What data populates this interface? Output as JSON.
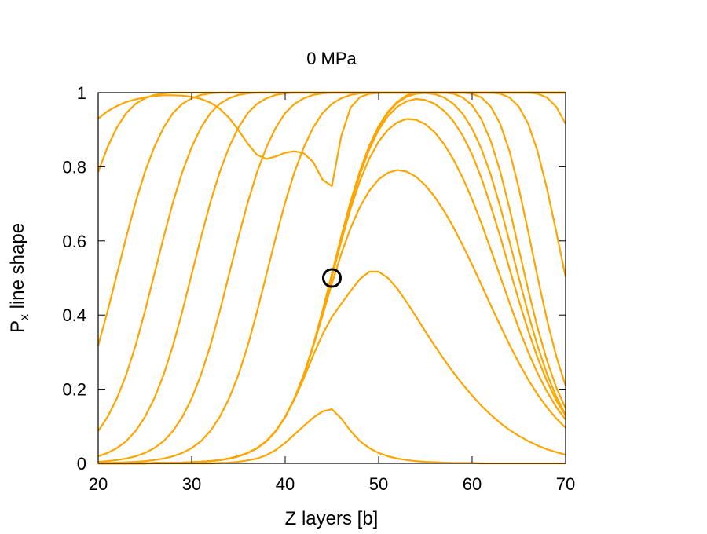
{
  "chart_data": {
    "type": "line",
    "title": "0 MPa",
    "xlabel": "Z layers [b]",
    "ylabel_main": "P",
    "ylabel_sub": "x",
    "ylabel_rest": " line shape",
    "xlim": [
      20,
      70
    ],
    "ylim": [
      0,
      1
    ],
    "xticks": [
      20,
      30,
      40,
      50,
      60,
      70
    ],
    "xtick_labels": [
      "20",
      "30",
      "40",
      "50",
      "60",
      "70"
    ],
    "yticks": [
      0,
      0.2,
      0.4,
      0.6,
      0.8,
      1
    ],
    "ytick_labels": [
      "0",
      "0.2",
      "0.4",
      "0.6",
      "0.8",
      "1"
    ],
    "grid": false,
    "legend": "none",
    "line_color": "#ffa500",
    "marker": {
      "x": 45,
      "y": 0.5,
      "shape": "open-circle",
      "color": "#000000"
    },
    "x": [
      20,
      21,
      22,
      23,
      24,
      25,
      26,
      27,
      28,
      29,
      30,
      31,
      32,
      33,
      34,
      35,
      36,
      37,
      38,
      39,
      40,
      41,
      42,
      43,
      44,
      45,
      46,
      47,
      48,
      49,
      50,
      51,
      52,
      53,
      54,
      55,
      56,
      57,
      58,
      59,
      60,
      61,
      62,
      63,
      64,
      65,
      66,
      67,
      68,
      69,
      70
    ],
    "series": [
      {
        "values": [
          0.93,
          0.95,
          0.964,
          0.975,
          0.982,
          0.987,
          0.991,
          0.993,
          0.993,
          0.992,
          0.989,
          0.983,
          0.973,
          0.957,
          0.932,
          0.899,
          0.862,
          0.832,
          0.821,
          0.828,
          0.838,
          0.842,
          0.836,
          0.813,
          0.765,
          0.748,
          0.883,
          0.96,
          0.988,
          0.997,
          0.999,
          1.0,
          1.0,
          1.0,
          1.0,
          1.0,
          1.0,
          1.0,
          1.0,
          1.0,
          1.0,
          1.0,
          1.0,
          1.0,
          1.0,
          1.0,
          1.0,
          1.0,
          1.0,
          1.0,
          1.0
        ]
      },
      {
        "values": [
          0.0,
          0.0,
          0.0,
          0.0,
          0.0,
          0.0,
          0.0,
          0.0,
          0.0,
          0.0,
          0.0,
          0.0,
          0.0,
          0.001,
          0.002,
          0.004,
          0.008,
          0.013,
          0.022,
          0.036,
          0.055,
          0.078,
          0.101,
          0.123,
          0.14,
          0.146,
          0.121,
          0.087,
          0.06,
          0.041,
          0.028,
          0.019,
          0.013,
          0.009,
          0.006,
          0.004,
          0.003,
          0.002,
          0.001,
          0.001,
          0.001,
          0.0,
          0.0,
          0.0,
          0.0,
          0.0,
          0.0,
          0.0,
          0.0,
          0.0,
          0.0
        ]
      },
      {
        "values": [
          0.0,
          0.0,
          0.0,
          0.0,
          0.0,
          0.0,
          0.001,
          0.001,
          0.001,
          0.002,
          0.003,
          0.004,
          0.006,
          0.009,
          0.013,
          0.019,
          0.028,
          0.041,
          0.06,
          0.087,
          0.125,
          0.173,
          0.23,
          0.291,
          0.348,
          0.395,
          0.43,
          0.465,
          0.497,
          0.517,
          0.517,
          0.5,
          0.471,
          0.435,
          0.396,
          0.356,
          0.317,
          0.28,
          0.245,
          0.213,
          0.183,
          0.155,
          0.131,
          0.109,
          0.09,
          0.074,
          0.06,
          0.048,
          0.038,
          0.03,
          0.023
        ]
      },
      {
        "values": [
          0.0,
          0.0,
          0.0,
          0.0,
          0.0,
          0.0,
          0.001,
          0.001,
          0.001,
          0.002,
          0.003,
          0.004,
          0.006,
          0.009,
          0.013,
          0.019,
          0.028,
          0.041,
          0.06,
          0.087,
          0.125,
          0.175,
          0.239,
          0.315,
          0.399,
          0.485,
          0.565,
          0.635,
          0.692,
          0.735,
          0.766,
          0.784,
          0.791,
          0.787,
          0.773,
          0.75,
          0.719,
          0.681,
          0.637,
          0.588,
          0.536,
          0.481,
          0.426,
          0.372,
          0.32,
          0.271,
          0.226,
          0.186,
          0.151,
          0.121,
          0.096
        ]
      },
      {
        "values": [
          0.0,
          0.0,
          0.0,
          0.0,
          0.0,
          0.0,
          0.001,
          0.001,
          0.001,
          0.002,
          0.003,
          0.004,
          0.006,
          0.009,
          0.013,
          0.019,
          0.028,
          0.041,
          0.06,
          0.087,
          0.125,
          0.175,
          0.239,
          0.317,
          0.407,
          0.504,
          0.599,
          0.687,
          0.762,
          0.822,
          0.868,
          0.9,
          0.92,
          0.929,
          0.927,
          0.915,
          0.893,
          0.861,
          0.82,
          0.77,
          0.712,
          0.647,
          0.577,
          0.505,
          0.433,
          0.364,
          0.3,
          0.243,
          0.194,
          0.152,
          0.118
        ]
      },
      {
        "values": [
          0.0,
          0.0,
          0.0,
          0.0,
          0.0,
          0.0,
          0.001,
          0.001,
          0.001,
          0.002,
          0.003,
          0.004,
          0.006,
          0.009,
          0.013,
          0.019,
          0.028,
          0.041,
          0.06,
          0.087,
          0.125,
          0.175,
          0.239,
          0.318,
          0.409,
          0.508,
          0.607,
          0.699,
          0.78,
          0.847,
          0.899,
          0.937,
          0.962,
          0.977,
          0.983,
          0.98,
          0.97,
          0.951,
          0.923,
          0.884,
          0.833,
          0.769,
          0.694,
          0.612,
          0.525,
          0.439,
          0.358,
          0.285,
          0.222,
          0.17,
          0.128
        ]
      },
      {
        "values": [
          0.0,
          0.0,
          0.0,
          0.0,
          0.0,
          0.0,
          0.001,
          0.001,
          0.001,
          0.002,
          0.003,
          0.004,
          0.006,
          0.009,
          0.013,
          0.019,
          0.028,
          0.041,
          0.06,
          0.087,
          0.125,
          0.175,
          0.239,
          0.318,
          0.41,
          0.51,
          0.61,
          0.704,
          0.786,
          0.854,
          0.907,
          0.946,
          0.973,
          0.989,
          0.997,
          0.999,
          0.996,
          0.987,
          0.97,
          0.943,
          0.903,
          0.848,
          0.778,
          0.693,
          0.598,
          0.5,
          0.404,
          0.317,
          0.242,
          0.18,
          0.131
        ]
      },
      {
        "values": [
          0.0,
          0.0,
          0.0,
          0.0,
          0.0,
          0.0,
          0.001,
          0.001,
          0.001,
          0.002,
          0.003,
          0.004,
          0.006,
          0.009,
          0.013,
          0.019,
          0.028,
          0.041,
          0.06,
          0.087,
          0.125,
          0.175,
          0.239,
          0.318,
          0.41,
          0.51,
          0.611,
          0.705,
          0.788,
          0.856,
          0.909,
          0.948,
          0.975,
          0.992,
          1.0,
          1.0,
          1.0,
          1.0,
          0.997,
          0.987,
          0.966,
          0.928,
          0.869,
          0.788,
          0.688,
          0.578,
          0.468,
          0.366,
          0.278,
          0.205,
          0.148
        ]
      },
      {
        "values": [
          0.0,
          0.0,
          0.0,
          0.0,
          0.0,
          0.0,
          0.001,
          0.001,
          0.001,
          0.002,
          0.003,
          0.004,
          0.006,
          0.009,
          0.013,
          0.019,
          0.028,
          0.041,
          0.06,
          0.087,
          0.125,
          0.175,
          0.239,
          0.318,
          0.41,
          0.51,
          0.611,
          0.705,
          0.788,
          0.856,
          0.909,
          0.948,
          0.975,
          0.992,
          1.0,
          1.0,
          1.0,
          1.0,
          1.0,
          1.0,
          0.997,
          0.987,
          0.962,
          0.916,
          0.842,
          0.742,
          0.625,
          0.503,
          0.388,
          0.289,
          0.209
        ]
      },
      {
        "values": [
          0.0,
          0.0,
          0.0,
          0.0,
          0.0,
          0.0,
          0.001,
          0.001,
          0.001,
          0.002,
          0.003,
          0.004,
          0.006,
          0.009,
          0.013,
          0.019,
          0.028,
          0.041,
          0.06,
          0.087,
          0.125,
          0.175,
          0.239,
          0.318,
          0.41,
          0.51,
          0.611,
          0.705,
          0.788,
          0.856,
          0.909,
          0.948,
          0.975,
          0.992,
          1.0,
          1.0,
          1.0,
          1.0,
          1.0,
          1.0,
          1.0,
          1.0,
          1.0,
          0.997,
          0.987,
          0.962,
          0.916,
          0.842,
          0.742,
          0.625,
          0.503
        ]
      },
      {
        "values": [
          0.0,
          0.0,
          0.0,
          0.0,
          0.0,
          0.0,
          0.001,
          0.001,
          0.001,
          0.002,
          0.003,
          0.004,
          0.006,
          0.009,
          0.013,
          0.019,
          0.028,
          0.041,
          0.06,
          0.087,
          0.125,
          0.175,
          0.239,
          0.318,
          0.41,
          0.51,
          0.611,
          0.705,
          0.788,
          0.856,
          0.909,
          0.948,
          0.975,
          0.992,
          1.0,
          1.0,
          1.0,
          1.0,
          1.0,
          1.0,
          1.0,
          1.0,
          1.0,
          1.0,
          1.0,
          1.0,
          1.0,
          0.997,
          0.987,
          0.962,
          0.916
        ]
      },
      {
        "values": [
          0.0,
          0.0,
          0.0,
          0.0,
          0.0,
          0.0,
          0.001,
          0.001,
          0.001,
          0.002,
          0.003,
          0.004,
          0.006,
          0.009,
          0.013,
          0.019,
          0.028,
          0.041,
          0.06,
          0.087,
          0.125,
          0.175,
          0.239,
          0.318,
          0.41,
          0.51,
          0.611,
          0.705,
          0.788,
          0.856,
          0.909,
          0.948,
          0.975,
          0.992,
          1.0,
          1.0,
          1.0,
          1.0,
          1.0,
          1.0,
          1.0,
          1.0,
          1.0,
          1.0,
          1.0,
          1.0,
          1.0,
          1.0,
          1.0,
          1.0,
          1.0
        ]
      },
      {
        "values": [
          0.001,
          0.001,
          0.002,
          0.003,
          0.004,
          0.006,
          0.009,
          0.013,
          0.019,
          0.028,
          0.041,
          0.06,
          0.087,
          0.125,
          0.175,
          0.239,
          0.318,
          0.41,
          0.51,
          0.61,
          0.704,
          0.786,
          0.853,
          0.906,
          0.945,
          0.97,
          0.985,
          0.994,
          0.998,
          1.0,
          1.0,
          1.0,
          1.0,
          1.0,
          1.0,
          1.0,
          1.0,
          1.0,
          1.0,
          1.0,
          1.0,
          1.0,
          1.0,
          1.0,
          1.0,
          1.0,
          1.0,
          1.0,
          1.0,
          1.0,
          1.0
        ]
      },
      {
        "values": [
          0.004,
          0.006,
          0.009,
          0.013,
          0.019,
          0.028,
          0.041,
          0.06,
          0.087,
          0.125,
          0.175,
          0.239,
          0.318,
          0.41,
          0.51,
          0.61,
          0.704,
          0.786,
          0.853,
          0.906,
          0.945,
          0.97,
          0.985,
          0.994,
          0.998,
          1.0,
          1.0,
          1.0,
          1.0,
          1.0,
          1.0,
          1.0,
          1.0,
          1.0,
          1.0,
          1.0,
          1.0,
          1.0,
          1.0,
          1.0,
          1.0,
          1.0,
          1.0,
          1.0,
          1.0,
          1.0,
          1.0,
          1.0,
          1.0,
          1.0,
          1.0
        ]
      },
      {
        "values": [
          0.019,
          0.028,
          0.041,
          0.06,
          0.087,
          0.125,
          0.175,
          0.239,
          0.318,
          0.41,
          0.51,
          0.61,
          0.704,
          0.786,
          0.853,
          0.906,
          0.945,
          0.97,
          0.985,
          0.994,
          0.998,
          1.0,
          1.0,
          1.0,
          1.0,
          1.0,
          1.0,
          1.0,
          1.0,
          1.0,
          1.0,
          1.0,
          1.0,
          1.0,
          1.0,
          1.0,
          1.0,
          1.0,
          1.0,
          1.0,
          1.0,
          1.0,
          1.0,
          1.0,
          1.0,
          1.0,
          1.0,
          1.0,
          1.0,
          1.0,
          1.0
        ]
      },
      {
        "values": [
          0.087,
          0.125,
          0.175,
          0.239,
          0.318,
          0.41,
          0.51,
          0.61,
          0.704,
          0.786,
          0.853,
          0.906,
          0.945,
          0.97,
          0.985,
          0.994,
          0.998,
          1.0,
          1.0,
          1.0,
          1.0,
          1.0,
          1.0,
          1.0,
          1.0,
          1.0,
          1.0,
          1.0,
          1.0,
          1.0,
          1.0,
          1.0,
          1.0,
          1.0,
          1.0,
          1.0,
          1.0,
          1.0,
          1.0,
          1.0,
          1.0,
          1.0,
          1.0,
          1.0,
          1.0,
          1.0,
          1.0,
          1.0,
          1.0,
          1.0,
          1.0
        ]
      },
      {
        "values": [
          0.318,
          0.41,
          0.51,
          0.61,
          0.704,
          0.786,
          0.853,
          0.906,
          0.945,
          0.97,
          0.985,
          0.994,
          0.998,
          1.0,
          1.0,
          1.0,
          1.0,
          1.0,
          1.0,
          1.0,
          1.0,
          1.0,
          1.0,
          1.0,
          1.0,
          1.0,
          1.0,
          1.0,
          1.0,
          1.0,
          1.0,
          1.0,
          1.0,
          1.0,
          1.0,
          1.0,
          1.0,
          1.0,
          1.0,
          1.0,
          1.0,
          1.0,
          1.0,
          1.0,
          1.0,
          1.0,
          1.0,
          1.0,
          1.0,
          1.0,
          1.0
        ]
      },
      {
        "values": [
          0.786,
          0.853,
          0.906,
          0.945,
          0.97,
          0.985,
          0.994,
          0.998,
          1.0,
          1.0,
          1.0,
          1.0,
          1.0,
          1.0,
          1.0,
          1.0,
          1.0,
          1.0,
          1.0,
          1.0,
          1.0,
          1.0,
          1.0,
          1.0,
          1.0,
          1.0,
          1.0,
          1.0,
          1.0,
          1.0,
          1.0,
          1.0,
          1.0,
          1.0,
          1.0,
          1.0,
          1.0,
          1.0,
          1.0,
          1.0,
          1.0,
          1.0,
          1.0,
          1.0,
          1.0,
          1.0,
          1.0,
          1.0,
          1.0,
          1.0,
          1.0
        ]
      }
    ]
  }
}
